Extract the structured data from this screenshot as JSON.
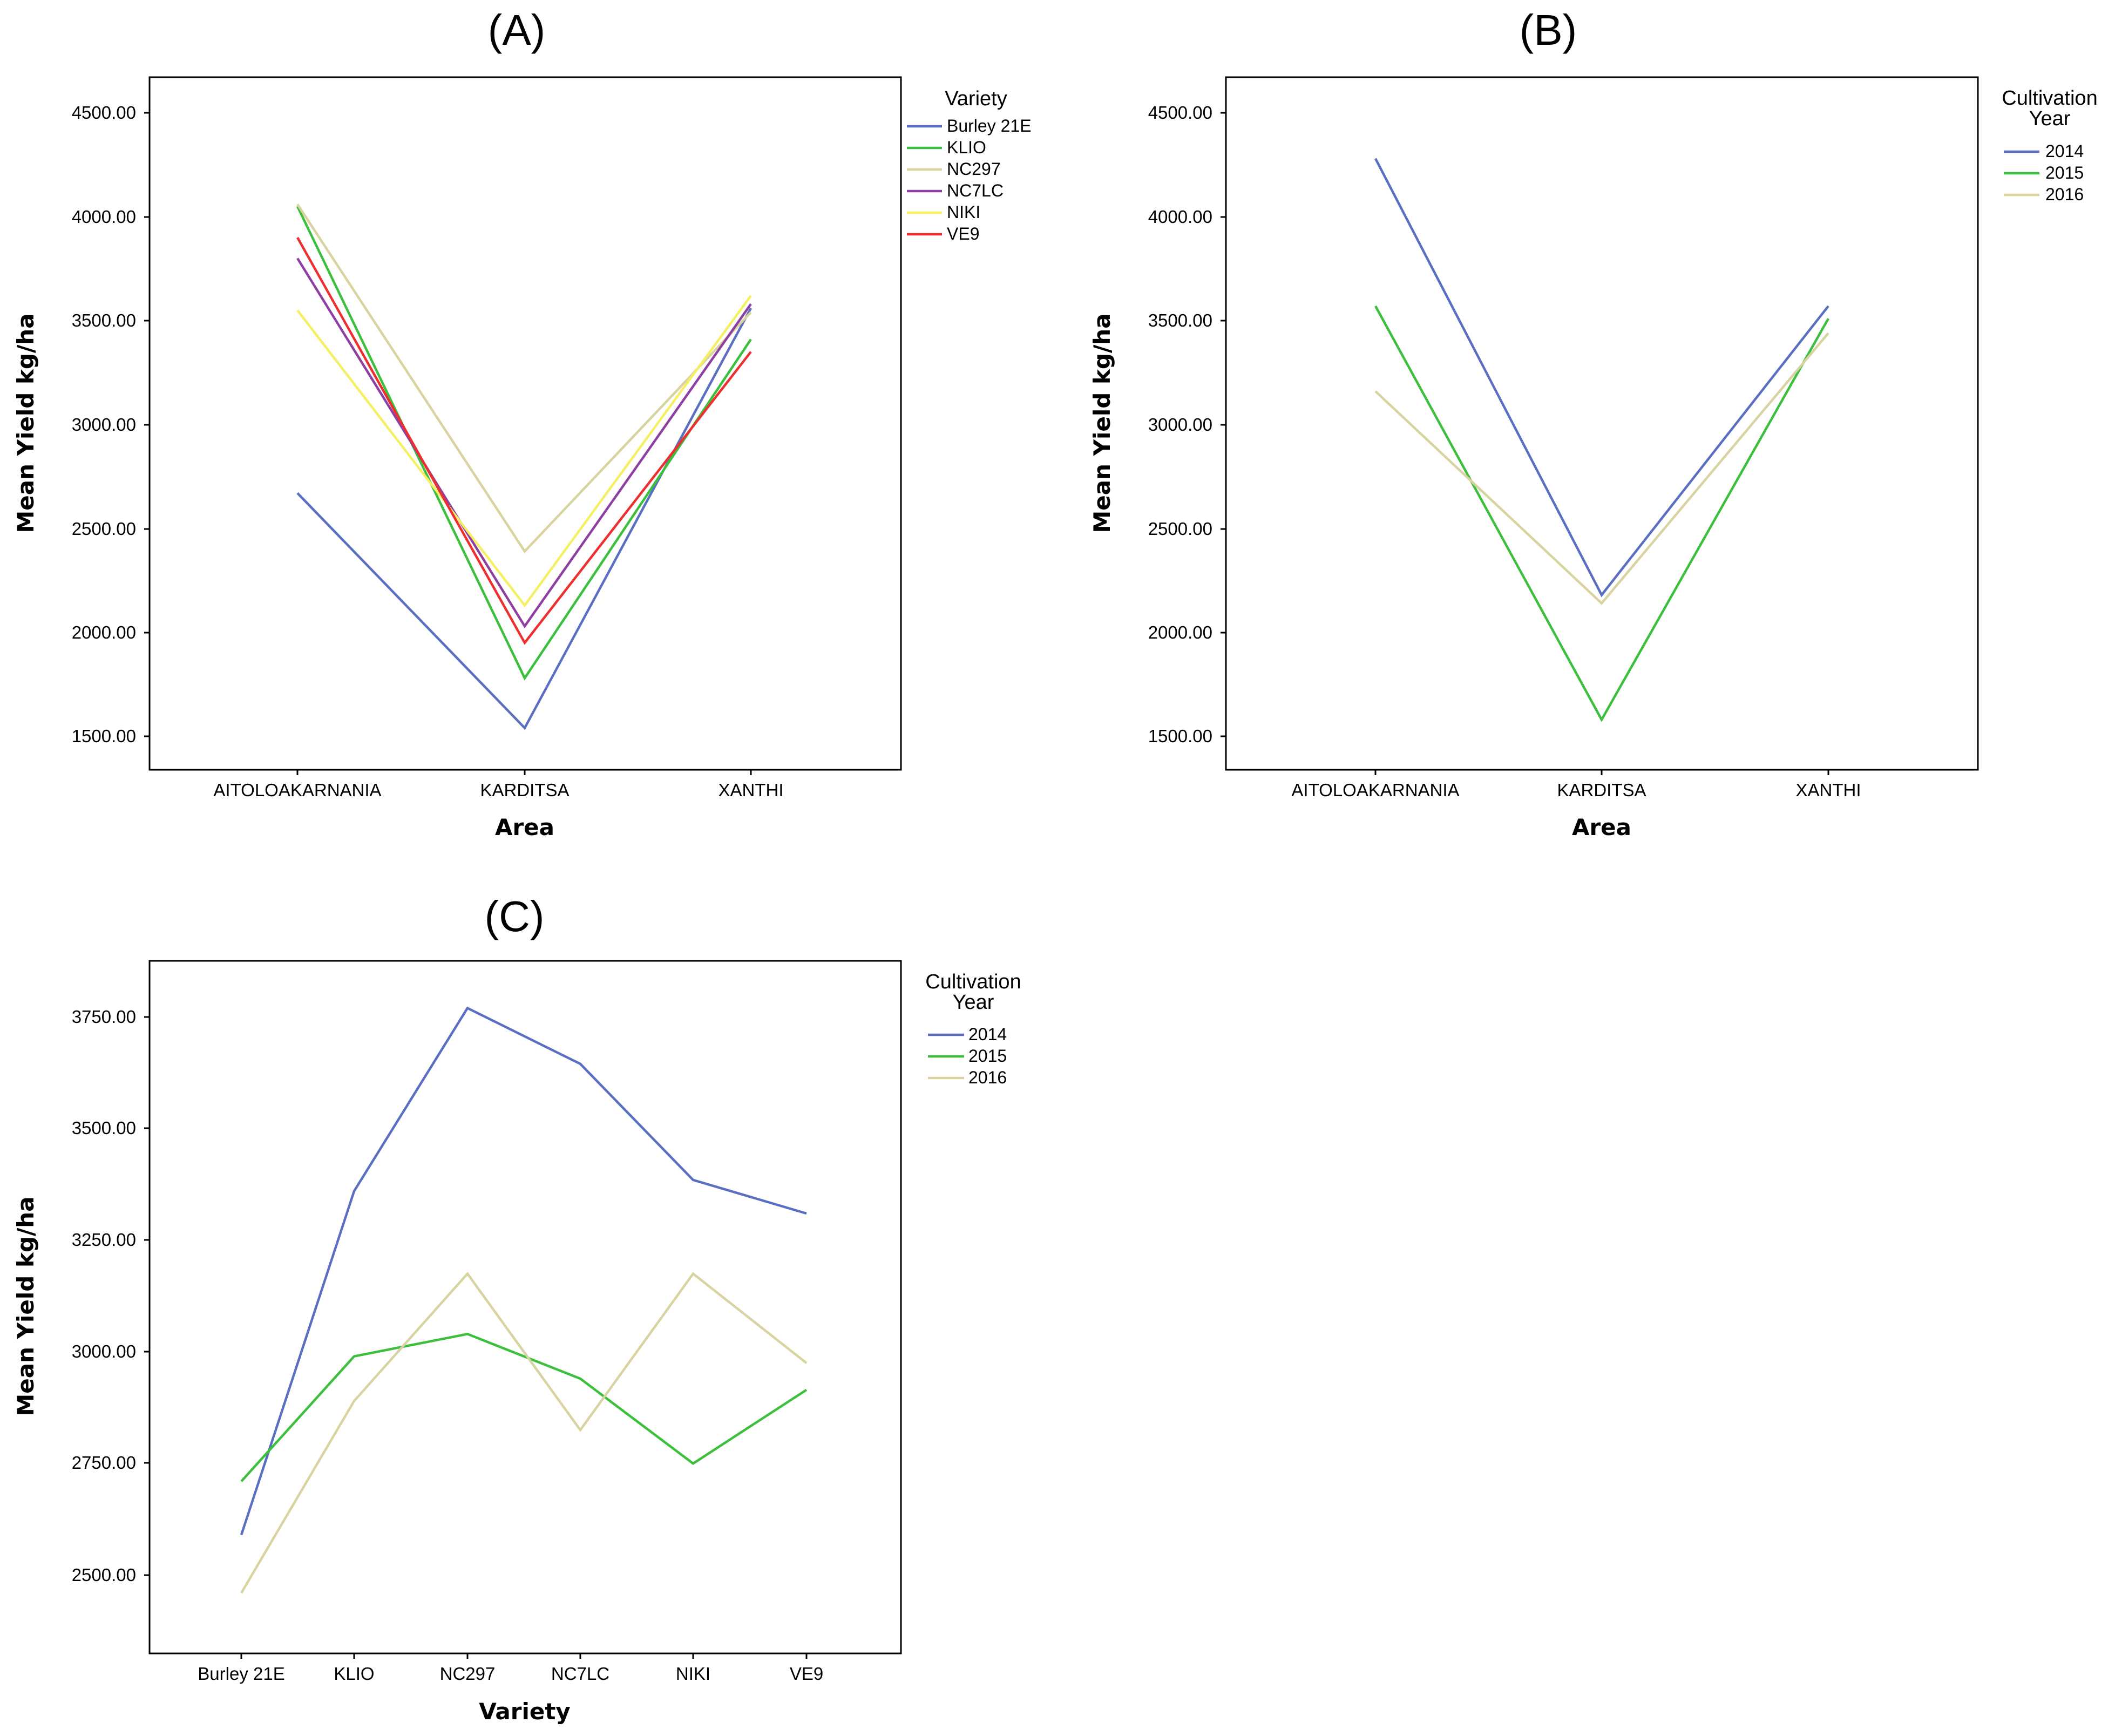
{
  "chart_data": [
    {
      "panel": "(A)",
      "type": "line",
      "xlabel": "Area",
      "ylabel": "Mean Yield kg/ha",
      "categories": [
        "AITOLOAKARNANIA",
        "KARDITSA",
        "XANTHI"
      ],
      "yticks": [
        "1500.00",
        "2000.00",
        "2500.00",
        "3000.00",
        "3500.00",
        "4000.00",
        "4500.00"
      ],
      "ylim": [
        1350,
        4690
      ],
      "legend_title": "Variety",
      "legend_position": "right",
      "series": [
        {
          "name": "Burley 21E",
          "color": "#5b6fc2",
          "values": [
            2670,
            1540,
            3560
          ]
        },
        {
          "name": "KLIO",
          "color": "#3cbf3c",
          "values": [
            4050,
            1780,
            3410
          ]
        },
        {
          "name": "NC297",
          "color": "#d9d3a0",
          "values": [
            4060,
            2390,
            3540
          ]
        },
        {
          "name": "NC7LC",
          "color": "#8e3fa2",
          "values": [
            3800,
            2030,
            3580
          ]
        },
        {
          "name": "NIKI",
          "color": "#f4f062",
          "values": [
            3550,
            2130,
            3620
          ]
        },
        {
          "name": "VE9",
          "color": "#ee2f2f",
          "values": [
            3900,
            1950,
            3350
          ]
        }
      ]
    },
    {
      "panel": "(B)",
      "type": "line",
      "xlabel": "Area",
      "ylabel": "Mean Yield kg/ha",
      "categories": [
        "AITOLOAKARNANIA",
        "KARDITSA",
        "XANTHI"
      ],
      "yticks": [
        "1500.00",
        "2000.00",
        "2500.00",
        "3000.00",
        "3500.00",
        "4000.00",
        "4500.00"
      ],
      "ylim": [
        1350,
        4690
      ],
      "legend_title_lines": [
        "Cultivation",
        "Year"
      ],
      "legend_position": "right",
      "series": [
        {
          "name": "2014",
          "color": "#5b6fc2",
          "values": [
            4280,
            2180,
            3570
          ]
        },
        {
          "name": "2015",
          "color": "#3cbf3c",
          "values": [
            3570,
            1580,
            3510
          ]
        },
        {
          "name": "2016",
          "color": "#d9d3a0",
          "values": [
            3160,
            2140,
            3440
          ]
        }
      ]
    },
    {
      "panel": "(C)",
      "type": "line",
      "xlabel": "Variety",
      "ylabel": "Mean Yield kg/ha",
      "categories": [
        "Burley 21E",
        "KLIO",
        "NC297",
        "NC7LC",
        "NIKI",
        "VE9"
      ],
      "yticks": [
        "2500.00",
        "2750.00",
        "3000.00",
        "3250.00",
        "3500.00",
        "3750.00"
      ],
      "ylim": [
        2320,
        3880
      ],
      "legend_title_lines": [
        "Cultivation",
        "Year"
      ],
      "legend_position": "right",
      "series": [
        {
          "name": "2014",
          "color": "#5b6fc2",
          "values": [
            2590,
            3360,
            3770,
            3645,
            3385,
            3310
          ]
        },
        {
          "name": "2015",
          "color": "#3cbf3c",
          "values": [
            2710,
            2990,
            3040,
            2940,
            2750,
            2915
          ]
        },
        {
          "name": "2016",
          "color": "#d9d3a0",
          "values": [
            2460,
            2890,
            3175,
            2825,
            3175,
            2975
          ]
        }
      ]
    }
  ]
}
